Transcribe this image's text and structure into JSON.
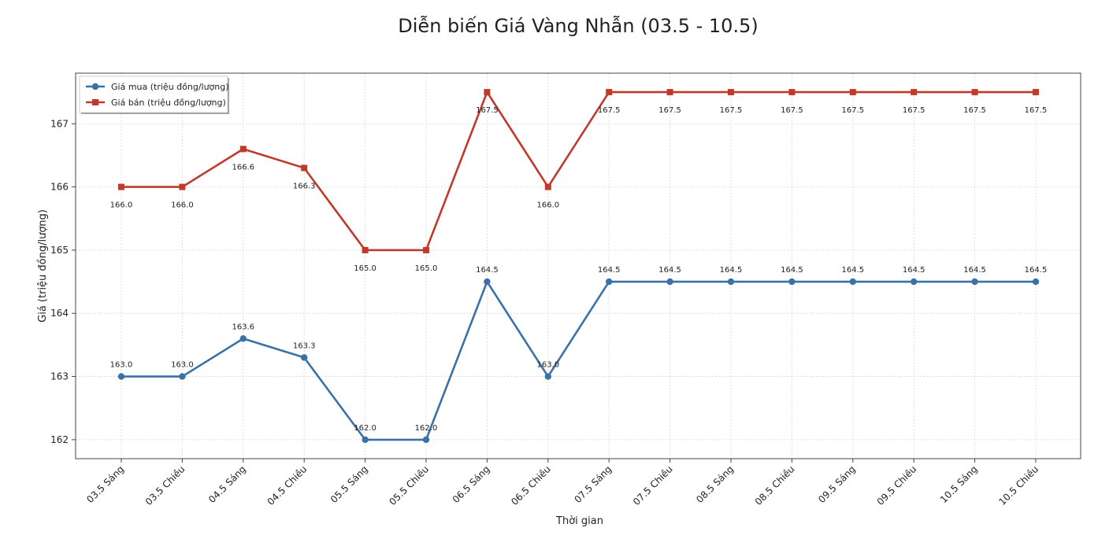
{
  "chart_data": {
    "type": "line",
    "title": "Diễn biến Giá Vàng Nhẫn (03.5 - 10.5)",
    "xlabel": "Thời gian",
    "ylabel": "Giá (triệu đồng/lượng)",
    "categories": [
      "03.5 Sáng",
      "03.5 Chiều",
      "04.5 Sáng",
      "04.5 Chiều",
      "05.5 Sáng",
      "05.5 Chiều",
      "06.5 Sáng",
      "06.5 Chiều",
      "07.5 Sáng",
      "07.5 Chiều",
      "08.5 Sáng",
      "08.5 Chiều",
      "09.5 Sáng",
      "09.5 Chiều",
      "10.5 Sáng",
      "10.5 Chiều"
    ],
    "ylim": [
      161.7,
      167.8
    ],
    "yticks": [
      162,
      163,
      164,
      165,
      166,
      167
    ],
    "grid": true,
    "legend_position": "top-left",
    "series": [
      {
        "name": "Giá mua (triệu đồng/lượng)",
        "color": "#3a72a8",
        "marker": "circle",
        "values": [
          163.0,
          163.0,
          163.6,
          163.3,
          162.0,
          162.0,
          164.5,
          163.0,
          164.5,
          164.5,
          164.5,
          164.5,
          164.5,
          164.5,
          164.5,
          164.5
        ],
        "labels": [
          "163.0",
          "163.0",
          "163.6",
          "163.3",
          "162.0",
          "162.0",
          "164.5",
          "163.0",
          "164.5",
          "164.5",
          "164.5",
          "164.5",
          "164.5",
          "164.5",
          "164.5",
          "164.5"
        ]
      },
      {
        "name": "Giá bán (triệu đồng/lượng)",
        "color": "#c0392b",
        "marker": "square",
        "values": [
          166.0,
          166.0,
          166.6,
          166.3,
          165.0,
          165.0,
          167.5,
          166.0,
          167.5,
          167.5,
          167.5,
          167.5,
          167.5,
          167.5,
          167.5,
          167.5
        ],
        "labels": [
          "166.0",
          "166.0",
          "166.6",
          "166.3",
          "165.0",
          "165.0",
          "167.5",
          "166.0",
          "167.5",
          "167.5",
          "167.5",
          "167.5",
          "167.5",
          "167.5",
          "167.5",
          "167.5"
        ]
      }
    ]
  }
}
